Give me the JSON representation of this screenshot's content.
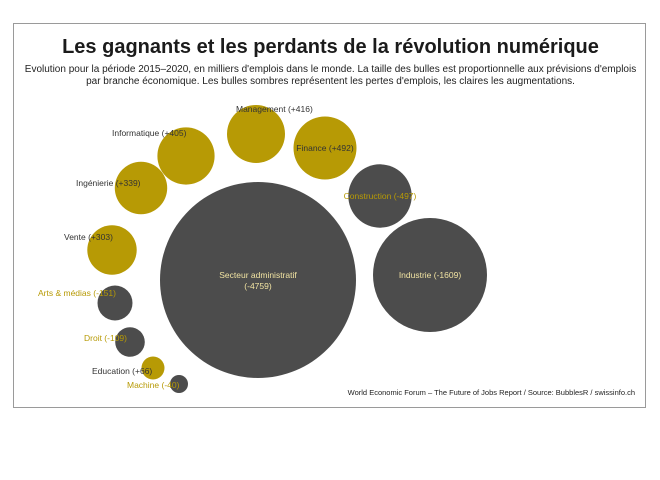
{
  "chart_data": {
    "type": "bubble",
    "title": "Les gagnants et les perdants de la révolution numérique",
    "subtitle": "Evolution pour la période 2015–2020, en milliers d'emplois dans le monde. La taille des bulles est proportionnelle aux prévisions d'emplois par branche économique. Les bulles sombres représentent les pertes d'emplois, les claires les augmentations.",
    "source": "World Economic Forum – The Future of Jobs Report / Source: BubblesR / swissinfo.ch",
    "colors": {
      "gain": "#b79a05",
      "loss": "#4c4c4c",
      "gain_label": "#b79a05",
      "loss_label": "#222222",
      "label_on_dark": "#f1e3a2"
    },
    "series": [
      {
        "label": "Secteur administratif",
        "value_text": "(-4759)",
        "value": -4759
      },
      {
        "label": "Industrie (-1609)",
        "value": -1609
      },
      {
        "label": "Construction (-497)",
        "value": -497
      },
      {
        "label": "Finance (+492)",
        "value": 492
      },
      {
        "label": "Management (+416)",
        "value": 416
      },
      {
        "label": "Informatique (+405)",
        "value": 405
      },
      {
        "label": "Ingénierie (+339)",
        "value": 339
      },
      {
        "label": "Vente (+303)",
        "value": 303
      },
      {
        "label": "Arts & médias (-151)",
        "value": -151
      },
      {
        "label": "Droit (-109)",
        "value": -109
      },
      {
        "label": "Education (+66)",
        "value": 66
      },
      {
        "label": "Machine (-40)",
        "value": -40
      }
    ]
  }
}
